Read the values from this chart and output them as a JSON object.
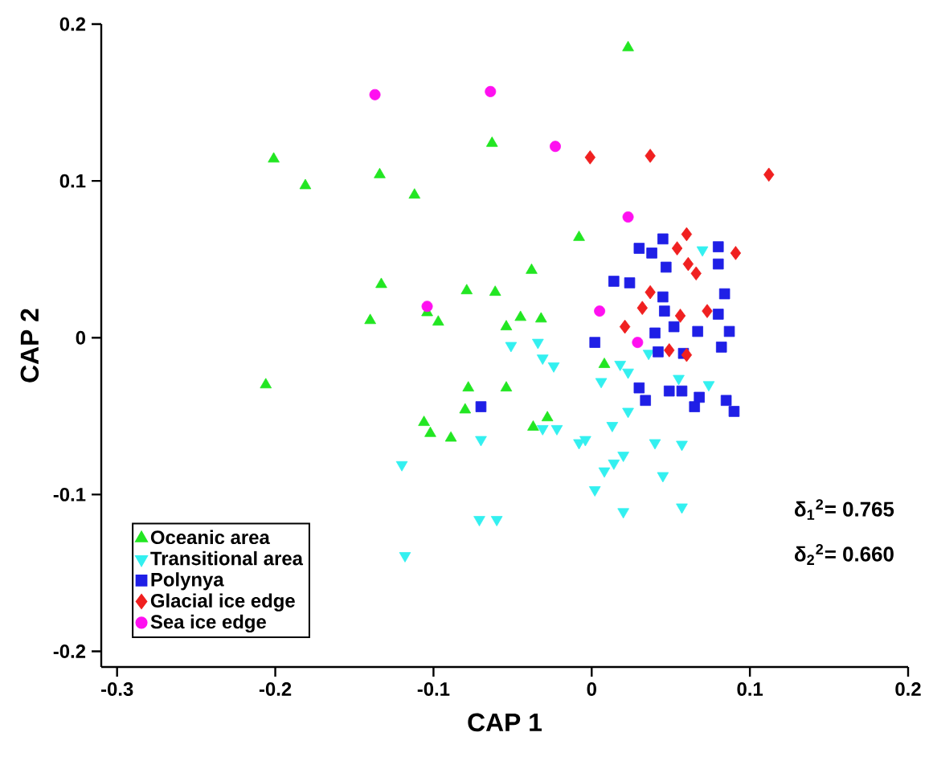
{
  "chart_data": {
    "type": "scatter",
    "xlabel": "CAP 1",
    "ylabel": "CAP 2",
    "xlim": [
      -0.31,
      0.2
    ],
    "ylim": [
      -0.21,
      0.2
    ],
    "xticks": [
      -0.3,
      -0.2,
      -0.1,
      0,
      0.1,
      0.2
    ],
    "yticks": [
      -0.2,
      -0.1,
      0,
      0.1,
      0.2
    ],
    "grid": false,
    "legend": "bottom left",
    "annotations": [
      "δ$_{1}$$^{2}$= 0.765",
      "δ$_{2}$$^{2}$= 0.660"
    ],
    "series": [
      {
        "name": "Oceanic area",
        "color": "#22e622",
        "marker": "triangle",
        "x": [
          0.023,
          -0.201,
          -0.181,
          -0.134,
          -0.112,
          -0.063,
          -0.133,
          -0.14,
          -0.097,
          -0.079,
          -0.061,
          -0.038,
          -0.045,
          -0.032,
          -0.054,
          -0.206,
          -0.078,
          -0.054,
          -0.08,
          -0.106,
          -0.102,
          -0.089,
          -0.037,
          -0.028,
          -0.008,
          0.008,
          -0.104
        ],
        "values": [
          0.185,
          0.114,
          0.097,
          0.104,
          0.091,
          0.124,
          0.034,
          0.011,
          0.01,
          0.03,
          0.029,
          0.043,
          0.013,
          0.012,
          0.007,
          -0.03,
          -0.032,
          -0.032,
          -0.046,
          -0.054,
          -0.061,
          -0.064,
          -0.057,
          -0.051,
          0.064,
          -0.017,
          0.016
        ]
      },
      {
        "name": "Transitional area",
        "color": "#33f0f0",
        "marker": "triangle-down",
        "x": [
          0.07,
          -0.051,
          -0.034,
          -0.031,
          -0.024,
          -0.07,
          -0.12,
          -0.071,
          -0.06,
          -0.031,
          -0.022,
          0.006,
          0.018,
          0.023,
          0.055,
          0.074,
          -0.008,
          -0.004,
          0.013,
          0.023,
          0.04,
          0.057,
          0.02,
          0.014,
          0.008,
          0.045,
          0.002,
          0.057,
          0.02,
          0.036,
          -0.118
        ],
        "values": [
          0.056,
          -0.005,
          -0.003,
          -0.013,
          -0.018,
          -0.065,
          -0.081,
          -0.116,
          -0.116,
          -0.058,
          -0.058,
          -0.028,
          -0.017,
          -0.022,
          -0.026,
          -0.03,
          -0.067,
          -0.065,
          -0.056,
          -0.047,
          -0.067,
          -0.068,
          -0.075,
          -0.08,
          -0.085,
          -0.088,
          -0.097,
          -0.108,
          -0.111,
          -0.01,
          -0.139
        ]
      },
      {
        "name": "Polynya",
        "color": "#1f1fe6",
        "marker": "square",
        "x": [
          0.03,
          0.038,
          0.045,
          0.047,
          0.08,
          0.08,
          0.014,
          0.024,
          0.045,
          0.046,
          0.052,
          0.04,
          0.067,
          0.084,
          0.08,
          0.087,
          0.082,
          0.002,
          0.042,
          0.058,
          0.03,
          0.034,
          0.049,
          0.057,
          0.068,
          0.065,
          0.085,
          0.09,
          -0.07
        ],
        "values": [
          0.057,
          0.054,
          0.063,
          0.045,
          0.058,
          0.047,
          0.036,
          0.035,
          0.026,
          0.017,
          0.007,
          0.003,
          0.004,
          0.028,
          0.015,
          0.004,
          -0.006,
          -0.003,
          -0.009,
          -0.01,
          -0.032,
          -0.04,
          -0.034,
          -0.034,
          -0.038,
          -0.044,
          -0.04,
          -0.047,
          -0.044
        ]
      },
      {
        "name": "Glacial ice edge",
        "color": "#f02020",
        "marker": "diamond",
        "x": [
          -0.001,
          0.037,
          0.112,
          0.06,
          0.054,
          0.091,
          0.061,
          0.066,
          0.037,
          0.032,
          0.021,
          0.056,
          0.073,
          0.049,
          0.06
        ],
        "values": [
          0.115,
          0.116,
          0.104,
          0.066,
          0.057,
          0.054,
          0.047,
          0.041,
          0.029,
          0.019,
          0.007,
          0.014,
          0.017,
          -0.008,
          -0.011
        ]
      },
      {
        "name": "Sea ice edge",
        "color": "#ff10f0",
        "marker": "circle",
        "x": [
          -0.137,
          -0.064,
          -0.023,
          -0.104,
          0.023,
          0.005,
          0.029
        ],
        "values": [
          0.155,
          0.157,
          0.122,
          0.02,
          0.077,
          0.017,
          -0.003
        ]
      }
    ]
  }
}
